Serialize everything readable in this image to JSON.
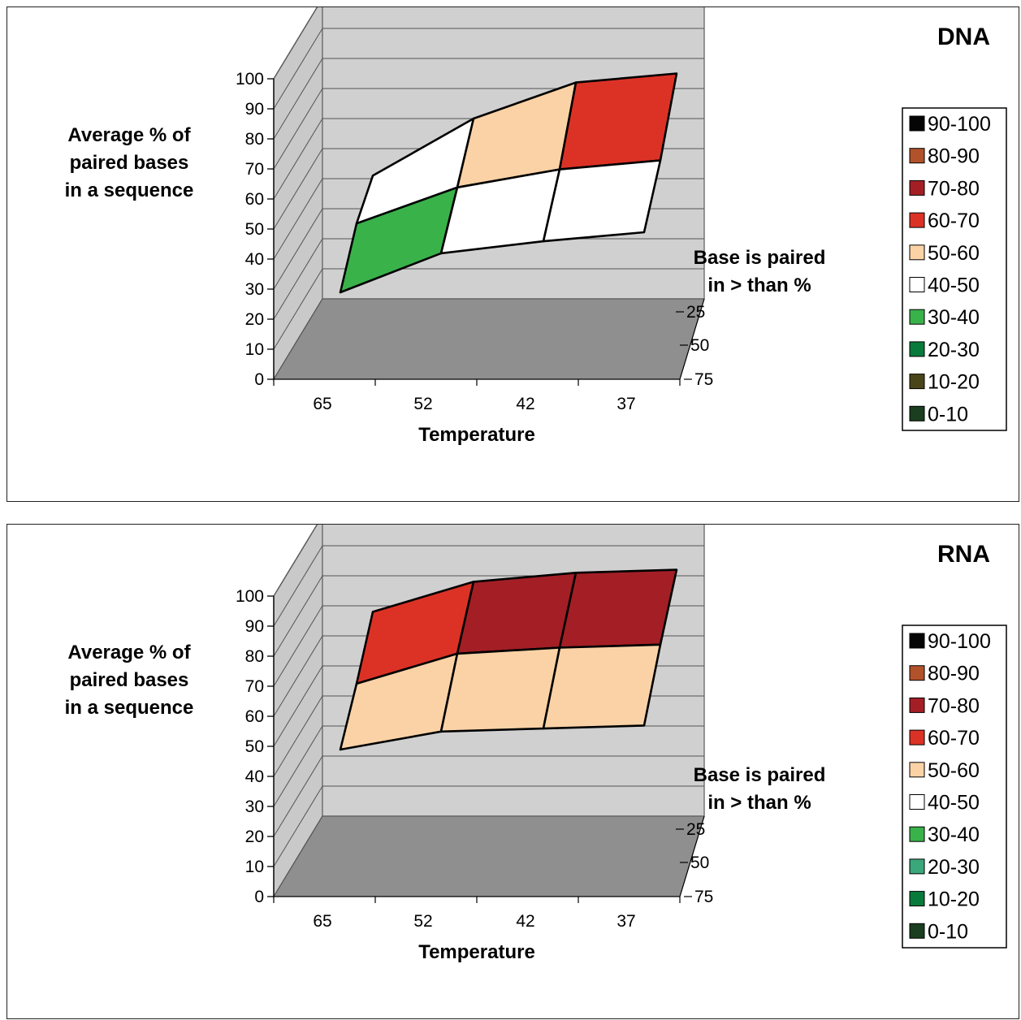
{
  "chart_data": [
    {
      "type": "surface",
      "title": "DNA",
      "ylabel": [
        "Average % of",
        "paired bases",
        "in a sequence"
      ],
      "xlabel": "Temperature",
      "zlabel": [
        "Base is paired",
        "in > than %"
      ],
      "x_categories": [
        "65",
        "52",
        "42",
        "37"
      ],
      "z_categories": [
        "25",
        "50",
        "75"
      ],
      "y_ticks": [
        "0",
        "10",
        "20",
        "30",
        "40",
        "50",
        "60",
        "70",
        "80",
        "90",
        "100"
      ],
      "ylim": [
        0,
        100
      ],
      "z_rows": [
        {
          "threshold": "25",
          "values": [
            41,
            60,
            72,
            75
          ]
        },
        {
          "threshold": "50",
          "values": [
            34,
            46,
            52,
            55
          ]
        },
        {
          "threshold": "75",
          "values": [
            20,
            33,
            37,
            40
          ]
        }
      ],
      "legend": [
        {
          "label": "90-100",
          "color": "#050505"
        },
        {
          "label": "80-90",
          "color": "#b2522a"
        },
        {
          "label": "70-80",
          "color": "#a31f25"
        },
        {
          "label": "60-70",
          "color": "#dc3226"
        },
        {
          "label": "50-60",
          "color": "#fbd2a6"
        },
        {
          "label": "40-50",
          "color": "#ffffff"
        },
        {
          "label": "30-40",
          "color": "#39b24a"
        },
        {
          "label": "20-30",
          "color": "#087a3b"
        },
        {
          "label": "10-20",
          "color": "#4a4519"
        },
        {
          "label": "0-10",
          "color": "#1a3e1f"
        }
      ]
    },
    {
      "type": "surface",
      "title": "RNA",
      "ylabel": [
        "Average % of",
        "paired bases",
        "in a sequence"
      ],
      "xlabel": "Temperature",
      "zlabel": [
        "Base is paired",
        "in > than %"
      ],
      "x_categories": [
        "65",
        "52",
        "42",
        "37"
      ],
      "z_categories": [
        "25",
        "50",
        "75"
      ],
      "y_ticks": [
        "0",
        "10",
        "20",
        "30",
        "40",
        "50",
        "60",
        "70",
        "80",
        "90",
        "100"
      ],
      "ylim": [
        0,
        100
      ],
      "z_rows": [
        {
          "threshold": "25",
          "values": [
            68,
            78,
            81,
            82
          ]
        },
        {
          "threshold": "50",
          "values": [
            53,
            63,
            65,
            66
          ]
        },
        {
          "threshold": "75",
          "values": [
            40,
            46,
            47,
            48
          ]
        }
      ],
      "legend": [
        {
          "label": "90-100",
          "color": "#050505"
        },
        {
          "label": "80-90",
          "color": "#b2522a"
        },
        {
          "label": "70-80",
          "color": "#a31f25"
        },
        {
          "label": "60-70",
          "color": "#dc3226"
        },
        {
          "label": "50-60",
          "color": "#fbd2a6"
        },
        {
          "label": "40-50",
          "color": "#ffffff"
        },
        {
          "label": "30-40",
          "color": "#39b24a"
        },
        {
          "label": "20-30",
          "color": "#3aa87a"
        },
        {
          "label": "10-20",
          "color": "#087a3b"
        },
        {
          "label": "0-10",
          "color": "#1a3e1f"
        }
      ]
    }
  ]
}
